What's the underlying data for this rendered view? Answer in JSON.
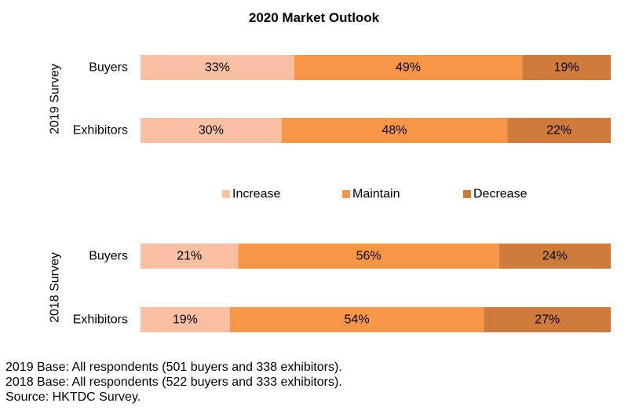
{
  "title": "2020 Market Outlook",
  "colors": {
    "Increase": "#f9c0a4",
    "Maintain": "#f79646",
    "Decrease": "#cf7b3b"
  },
  "chart_data": {
    "type": "bar",
    "orientation": "horizontal",
    "stacked": true,
    "normalized": true,
    "legend_position": "middle",
    "groups": [
      {
        "label": "2019 Survey",
        "categories": [
          "Buyers",
          "Exhibitors"
        ]
      },
      {
        "label": "2018 Survey",
        "categories": [
          "Buyers",
          "Exhibitors"
        ]
      }
    ],
    "series": [
      {
        "name": "Increase",
        "values": [
          [
            33,
            30
          ],
          [
            21,
            19
          ]
        ]
      },
      {
        "name": "Maintain",
        "values": [
          [
            49,
            48
          ],
          [
            56,
            54
          ]
        ]
      },
      {
        "name": "Decrease",
        "values": [
          [
            19,
            22
          ],
          [
            24,
            27
          ]
        ]
      }
    ],
    "value_suffix": "%"
  },
  "notes": [
    "2019 Base: All respondents (501 buyers and 338 exhibitors).",
    "2018 Base: All respondents (522 buyers and 333 exhibitors).",
    "Source: HKTDC Survey."
  ]
}
